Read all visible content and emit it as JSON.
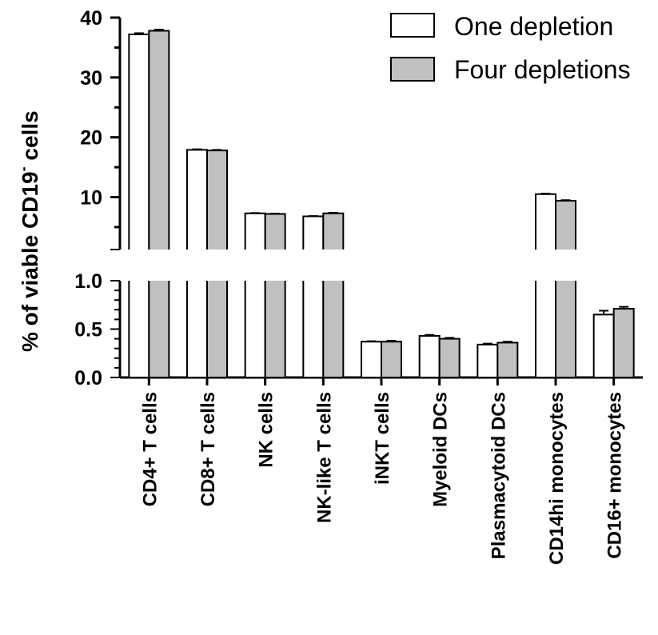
{
  "chart_data": {
    "type": "bar",
    "ylabel_main": "% of viable CD19",
    "ylabel_sup": "-",
    "ylabel_tail": " cells",
    "categories": [
      "CD4+ T cells",
      "CD8+ T cells",
      "NK cells",
      "NK-like T cells",
      "iNKT cells",
      "Myeloid DCs",
      "Plasmacytoid DCs",
      "CD14hi monocytes",
      "CD16+ monocytes"
    ],
    "series": [
      {
        "name": "One depletion",
        "color": "#ffffff",
        "values": [
          37.2,
          17.9,
          7.3,
          6.8,
          0.37,
          0.43,
          0.34,
          10.5,
          0.65
        ],
        "errors": [
          0.2,
          0.1,
          0.05,
          0.05,
          0.005,
          0.01,
          0.01,
          0.1,
          0.04
        ]
      },
      {
        "name": "Four depletions",
        "color": "#c0c0c0",
        "values": [
          37.8,
          17.8,
          7.2,
          7.3,
          0.37,
          0.4,
          0.36,
          9.4,
          0.71
        ],
        "errors": [
          0.2,
          0.1,
          0.05,
          0.1,
          0.01,
          0.01,
          0.01,
          0.1,
          0.02
        ]
      }
    ],
    "upper_axis": {
      "ticks": [
        "40",
        "30",
        "20",
        "10"
      ],
      "tick_values": [
        40,
        30,
        20,
        10
      ],
      "range": [
        1.25,
        40
      ]
    },
    "lower_axis": {
      "ticks": [
        "1.0",
        "0.5",
        "0.0"
      ],
      "tick_values": [
        1.0,
        0.5,
        0.0
      ],
      "range": [
        0,
        1.0
      ]
    },
    "legend_position": "top-right",
    "grid": false,
    "split_axis": true
  }
}
